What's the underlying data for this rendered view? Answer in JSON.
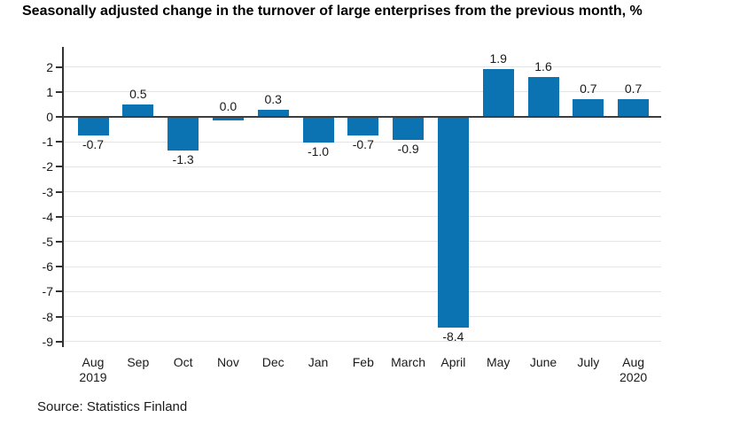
{
  "chart_data": {
    "type": "bar",
    "title": "Seasonally adjusted change in the turnover of large enterprises from the previous month, %",
    "categories": [
      "Aug 2019",
      "Sep",
      "Oct",
      "Nov",
      "Dec",
      "Jan",
      "Feb",
      "March",
      "April",
      "May",
      "June",
      "July",
      "Aug 2020"
    ],
    "x_tick_lines": [
      [
        "Aug",
        "2019"
      ],
      [
        "Sep"
      ],
      [
        "Oct"
      ],
      [
        "Nov"
      ],
      [
        "Dec"
      ],
      [
        "Jan"
      ],
      [
        "Feb"
      ],
      [
        "March"
      ],
      [
        "April"
      ],
      [
        "May"
      ],
      [
        "June"
      ],
      [
        "July"
      ],
      [
        "Aug",
        "2020"
      ]
    ],
    "values": [
      -0.7,
      0.5,
      -1.3,
      0.0,
      0.3,
      -1.0,
      -0.7,
      -0.9,
      -8.4,
      1.9,
      1.6,
      0.7,
      0.7
    ],
    "value_labels": [
      "-0.7",
      "0.5",
      "-1.3",
      "0.0",
      "0.3",
      "-1.0",
      "-0.7",
      "-0.9",
      "-8.4",
      "1.9",
      "1.6",
      "0.7",
      "0.7"
    ],
    "xlabel": "",
    "ylabel": "",
    "ylim": [
      -9.15,
      2.8
    ],
    "y_ticks": [
      2,
      1,
      0,
      -1,
      -2,
      -3,
      -4,
      -5,
      -6,
      -7,
      -8,
      -9
    ],
    "grid": true,
    "legend_position": "none",
    "bar_color": "#0c73b2",
    "grid_color": "#e4e4e4",
    "zero_line_color": "#3d3d3d",
    "axis_color": "#333333",
    "label_color": "#1a1a1a",
    "source": "Source: Statistics Finland"
  }
}
